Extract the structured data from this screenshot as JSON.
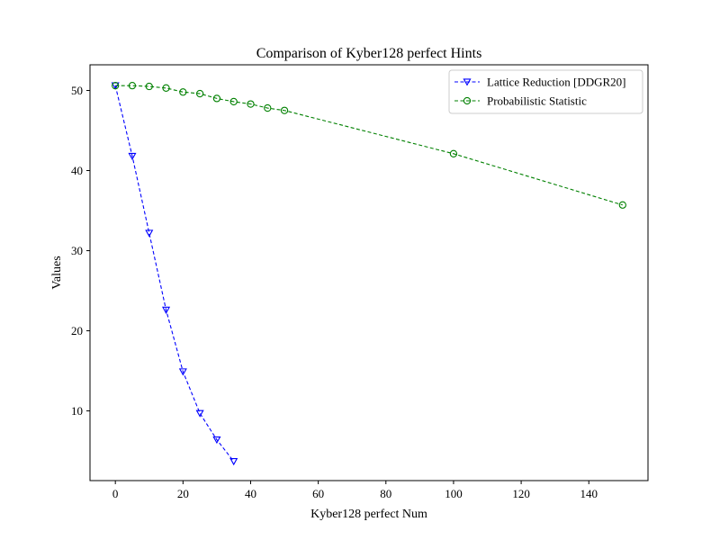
{
  "chart_data": {
    "type": "line",
    "title": "Comparison of Kyber128 perfect Hints",
    "xlabel": "Kyber128 perfect Num",
    "ylabel": "Values",
    "xlim": [
      -7.5,
      157.5
    ],
    "ylim": [
      1.3,
      53.2
    ],
    "xticks": [
      0,
      20,
      40,
      60,
      80,
      100,
      120,
      140
    ],
    "yticks": [
      10,
      20,
      30,
      40,
      50
    ],
    "grid": false,
    "legend_position": "top-right",
    "series": [
      {
        "name": "Lattice Reduction [DDGR20]",
        "color": "#0000ff",
        "marker": "triangle-down",
        "linestyle": "dashed",
        "x": [
          0,
          5,
          10,
          15,
          20,
          25,
          30,
          35
        ],
        "y": [
          50.6,
          41.8,
          32.2,
          22.6,
          14.9,
          9.7,
          6.4,
          3.7
        ]
      },
      {
        "name": "Probabilistic Statistic",
        "color": "#008000",
        "marker": "circle",
        "linestyle": "dashed",
        "x": [
          0,
          5,
          10,
          15,
          20,
          25,
          30,
          35,
          40,
          45,
          50,
          100,
          150
        ],
        "y": [
          50.6,
          50.6,
          50.5,
          50.3,
          49.8,
          49.6,
          49.0,
          48.6,
          48.3,
          47.8,
          47.5,
          42.1,
          35.7
        ]
      }
    ]
  }
}
